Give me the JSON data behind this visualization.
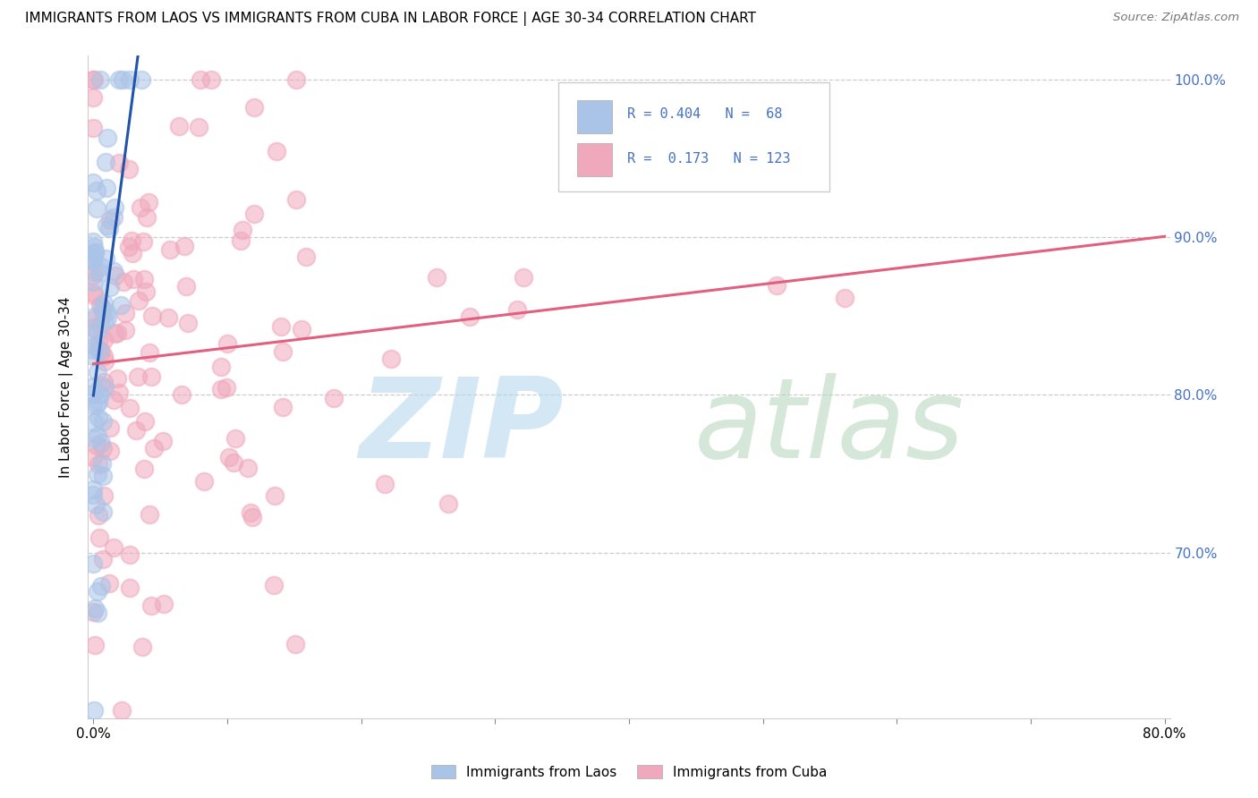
{
  "title": "IMMIGRANTS FROM LAOS VS IMMIGRANTS FROM CUBA IN LABOR FORCE | AGE 30-34 CORRELATION CHART",
  "source_text": "Source: ZipAtlas.com",
  "ylabel": "In Labor Force | Age 30-34",
  "legend_labels": [
    "Immigrants from Laos",
    "Immigrants from Cuba"
  ],
  "laos_color": "#aac4e8",
  "cuba_color": "#f0a8bc",
  "laos_line_color": "#2255aa",
  "cuba_line_color": "#e06080",
  "r_laos": 0.404,
  "n_laos": 68,
  "r_cuba": 0.173,
  "n_cuba": 123,
  "xlim": [
    -0.004,
    0.804
  ],
  "ylim": [
    0.595,
    1.015
  ],
  "xtick_positions": [
    0.0,
    0.8
  ],
  "xtick_labels": [
    "0.0%",
    "80.0%"
  ],
  "ytick_right_positions": [
    0.7,
    0.8,
    0.9,
    1.0
  ],
  "ytick_right_labels": [
    "70.0%",
    "80.0%",
    "90.0%",
    "100.0%"
  ],
  "grid_yticks": [
    0.7,
    0.8,
    0.9,
    1.0
  ],
  "legend_r_n_color": "#4472c4",
  "right_tick_color": "#4472c4"
}
